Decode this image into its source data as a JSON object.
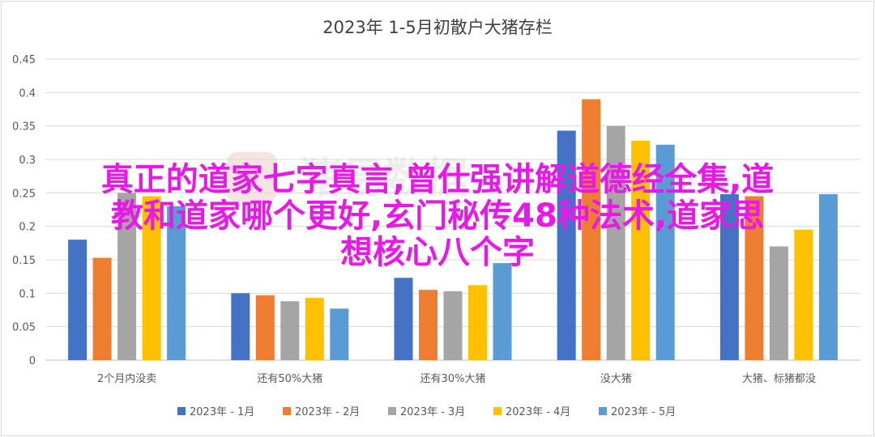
{
  "chart_data": {
    "type": "bar",
    "title": "2023年 1-5月初散户大猪存栏",
    "categories": [
      "2个月内没卖",
      "还有50%大猪",
      "还有30%大猪",
      "没大猪",
      "大猪、标猪都没"
    ],
    "series": [
      {
        "name": "2023年 - 1月",
        "color": "#4472c4",
        "values": [
          0.18,
          0.1,
          0.123,
          0.343,
          0.248
        ]
      },
      {
        "name": "2023年 - 2月",
        "color": "#ed7d31",
        "values": [
          0.153,
          0.097,
          0.105,
          0.39,
          0.245
        ]
      },
      {
        "name": "2023年 - 3月",
        "color": "#a5a5a5",
        "values": [
          0.25,
          0.088,
          0.103,
          0.35,
          0.17
        ]
      },
      {
        "name": "2023年 - 4月",
        "color": "#ffc000",
        "values": [
          0.245,
          0.093,
          0.112,
          0.328,
          0.195
        ]
      },
      {
        "name": "2023年 - 5月",
        "color": "#5b9bd5",
        "values": [
          0.23,
          0.077,
          0.145,
          0.322,
          0.248
        ]
      }
    ],
    "yticks": [
      "0",
      "0.05",
      "0.1",
      "0.15",
      "0.2",
      "0.25",
      "0.3",
      "0.35",
      "0.4",
      "0.45"
    ],
    "ylim": [
      0,
      0.45
    ],
    "grid": true,
    "legend": "bottom"
  },
  "watermark_text": "猪易数据",
  "overlay": {
    "lines": [
      "真正的道家七字真言,曾仕强讲解道德经全集,道",
      "教和道家哪个更好,玄门秘传48种法术,道家思",
      "想核心八个字"
    ]
  }
}
